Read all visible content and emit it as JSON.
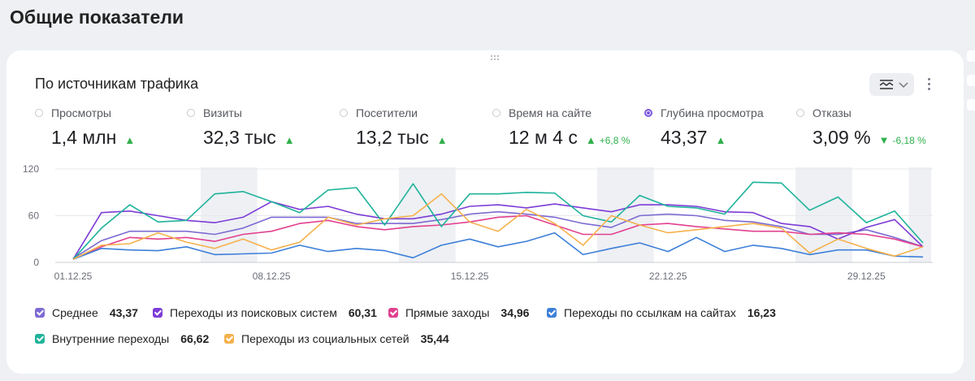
{
  "page": {
    "title": "Общие показатели"
  },
  "card": {
    "title": "По источникам трафика"
  },
  "metrics": [
    {
      "name": "Просмотры",
      "value": "1,4 млн",
      "trend": "up",
      "delta": "",
      "selected": false
    },
    {
      "name": "Визиты",
      "value": "32,3 тыс",
      "trend": "up",
      "delta": "",
      "selected": false
    },
    {
      "name": "Посетители",
      "value": "13,2 тыс",
      "trend": "up",
      "delta": "",
      "selected": false
    },
    {
      "name": "Время на сайте",
      "value": "12 м 4 с",
      "trend": "up",
      "delta": "+6,8 %",
      "selected": false
    },
    {
      "name": "Глубина просмотра",
      "value": "43,37",
      "trend": "up",
      "delta": "",
      "selected": true
    },
    {
      "name": "Отказы",
      "value": "3,09 %",
      "trend": "down",
      "delta": "-6,18 %",
      "selected": false
    }
  ],
  "icons": {
    "trend_up": "▲",
    "trend_down": "▼",
    "chart_type": "line-chart-icon",
    "more": "more-vertical-icon"
  },
  "legend": [
    {
      "name": "Среднее",
      "value": "43,37",
      "color": "#7e6ad2"
    },
    {
      "name": "Переходы из поисковых систем",
      "value": "60,31",
      "color": "#7d3cd6"
    },
    {
      "name": "Прямые заходы",
      "value": "34,96",
      "color": "#e2408f"
    },
    {
      "name": "Переходы по ссылкам на сайтах",
      "value": "16,23",
      "color": "#3d7fd9"
    },
    {
      "name": "Внутренние переходы",
      "value": "66,62",
      "color": "#1fb39a"
    },
    {
      "name": "Переходы из социальных сетей",
      "value": "35,44",
      "color": "#f5b14c"
    }
  ],
  "chart_data": {
    "type": "line",
    "y_ticks": [
      "0",
      "60",
      "120"
    ],
    "ylim": [
      0,
      120
    ],
    "x_tick_labels": [
      "01.12.25",
      "08.12.25",
      "15.12.25",
      "22.12.25",
      "29.12.25"
    ],
    "x": [
      "01.12.25",
      "02.12.25",
      "03.12.25",
      "04.12.25",
      "05.12.25",
      "06.12.25",
      "07.12.25",
      "08.12.25",
      "09.12.25",
      "10.12.25",
      "11.12.25",
      "12.12.25",
      "13.12.25",
      "14.12.25",
      "15.12.25",
      "16.12.25",
      "17.12.25",
      "18.12.25",
      "19.12.25",
      "20.12.25",
      "21.12.25",
      "22.12.25",
      "23.12.25",
      "24.12.25",
      "25.12.25",
      "26.12.25",
      "27.12.25",
      "28.12.25",
      "29.12.25",
      "30.12.25",
      "31.12.25"
    ],
    "weekend_bands": [
      [
        "06.12.25",
        "07.12.25"
      ],
      [
        "13.12.25",
        "14.12.25"
      ],
      [
        "20.12.25",
        "21.12.25"
      ],
      [
        "27.12.25",
        "28.12.25"
      ],
      [
        "31.12.25",
        "31.12.25"
      ]
    ],
    "series": [
      {
        "name": "Среднее",
        "color": "#7e6ad2",
        "values": [
          5,
          28,
          40,
          40,
          40,
          36,
          44,
          58,
          58,
          58,
          50,
          50,
          50,
          55,
          62,
          65,
          62,
          58,
          50,
          45,
          60,
          62,
          60,
          54,
          52,
          46,
          36,
          36,
          42,
          32,
          20
        ]
      },
      {
        "name": "Переходы из поисковых систем",
        "color": "#7d3cd6",
        "values": [
          4,
          64,
          66,
          60,
          54,
          51,
          58,
          78,
          68,
          72,
          62,
          56,
          56,
          62,
          72,
          74,
          70,
          75,
          70,
          65,
          74,
          74,
          72,
          65,
          64,
          50,
          46,
          30,
          45,
          55,
          20
        ]
      },
      {
        "name": "Прямые заходы",
        "color": "#e2408f",
        "values": [
          4,
          20,
          32,
          30,
          32,
          27,
          36,
          40,
          50,
          54,
          46,
          42,
          46,
          48,
          52,
          58,
          60,
          48,
          36,
          36,
          48,
          50,
          46,
          43,
          40,
          40,
          36,
          38,
          36,
          30,
          20
        ]
      },
      {
        "name": "Переходы по ссылкам на сайтах",
        "color": "#3d7fd9",
        "values": [
          4,
          18,
          16,
          15,
          20,
          10,
          11,
          12,
          22,
          14,
          18,
          15,
          6,
          22,
          30,
          20,
          27,
          38,
          10,
          18,
          25,
          14,
          32,
          14,
          22,
          18,
          10,
          16,
          16,
          8,
          7
        ]
      },
      {
        "name": "Внутренние переходы",
        "color": "#1fb39a",
        "values": [
          4,
          44,
          74,
          52,
          54,
          88,
          91,
          78,
          64,
          93,
          96,
          48,
          101,
          46,
          88,
          88,
          90,
          89,
          60,
          52,
          86,
          72,
          70,
          62,
          103,
          102,
          67,
          84,
          51,
          66,
          25
        ]
      },
      {
        "name": "Переходы из социальных сетей",
        "color": "#f5b14c",
        "values": [
          4,
          22,
          24,
          38,
          26,
          18,
          30,
          16,
          26,
          58,
          48,
          56,
          60,
          88,
          52,
          40,
          68,
          50,
          22,
          60,
          48,
          38,
          42,
          46,
          50,
          44,
          12,
          30,
          18,
          8,
          20
        ]
      }
    ]
  }
}
